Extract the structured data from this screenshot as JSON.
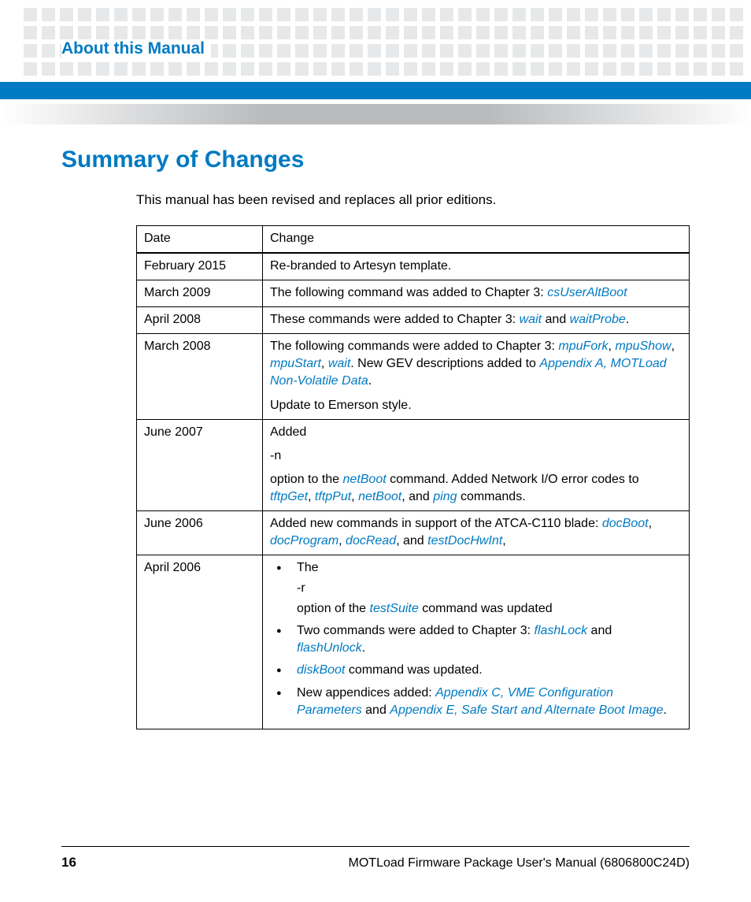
{
  "colors": {
    "accent": "#007ac2",
    "header_square": "#e7e8e9",
    "gradient_mid": "#b9bbbd",
    "text": "#000000",
    "background": "#ffffff"
  },
  "header": {
    "breadcrumb": "About this Manual"
  },
  "section": {
    "title": "Summary of Changes",
    "intro": "This manual has been revised and replaces all prior editions."
  },
  "table": {
    "columns": [
      "Date",
      "Change"
    ],
    "rows": {
      "feb2015": {
        "date": "February 2015",
        "change": "Re-branded to Artesyn template."
      },
      "mar2009": {
        "date": "March 2009",
        "pre": "The following command was added to Chapter 3: ",
        "link": "csUserAltBoot"
      },
      "apr2008": {
        "date": "April 2008",
        "pre": "These commands were added to Chapter 3: ",
        "l1": "wait",
        "mid": " and ",
        "l2": "waitProbe",
        "post": "."
      },
      "mar2008": {
        "date": "March 2008",
        "pre": "The following commands were added to Chapter 3: ",
        "l1": "mpuFork",
        "s1": ", ",
        "l2": "mpuShow",
        "s2": ", ",
        "l3": "mpuStart",
        "s3": ", ",
        "l4": "wait",
        "mid": ". New GEV descriptions added to ",
        "l5": "Appendix A, MOTLoad Non-Volatile Data",
        "post": ".",
        "p2": "Update to Emerson style."
      },
      "jun2007": {
        "date": "June 2007",
        "p1": "Added",
        "p2": "-n",
        "p3_pre": " option to the ",
        "p3_l1": "netBoot",
        "p3_mid": " command. Added Network I/O error codes to ",
        "p3_l2": "tftpGet",
        "p3_s1": ", ",
        "p3_l3": "tftpPut",
        "p3_s2": ", ",
        "p3_l4": "netBoot",
        "p3_s3": ", and ",
        "p3_l5": "ping",
        "p3_post": " commands."
      },
      "jun2006": {
        "date": "June 2006",
        "pre": "Added new commands in support of the ATCA-C110 blade: ",
        "l1": "docBoot",
        "s1": ", ",
        "l2": "docProgram",
        "s2": ", ",
        "l3": "docRead",
        "s3": ", and ",
        "l4": "testDocHwInt",
        "post": ","
      },
      "apr2006": {
        "date": "April 2006",
        "b1_pre": "The",
        "b1_opt": "-r",
        "b1_post_pre": " option of the ",
        "b1_link": "testSuite",
        "b1_post": " command was updated",
        "b2_pre": "Two commands were added to Chapter 3: ",
        "b2_l1": "flashLock",
        "b2_mid": " and ",
        "b2_l2": "flashUnlock",
        "b2_post": ".",
        "b3_l1": "diskBoot",
        "b3_post": " command was updated.",
        "b4_pre": "New appendices added: ",
        "b4_l1": "Appendix C, VME Configuration Parameters",
        "b4_mid": "  and ",
        "b4_l2": "Appendix E, Safe Start and Alternate Boot Image",
        "b4_post": "."
      }
    }
  },
  "footer": {
    "page_number": "16",
    "text": "MOTLoad Firmware Package User's Manual (6806800C24D)"
  }
}
